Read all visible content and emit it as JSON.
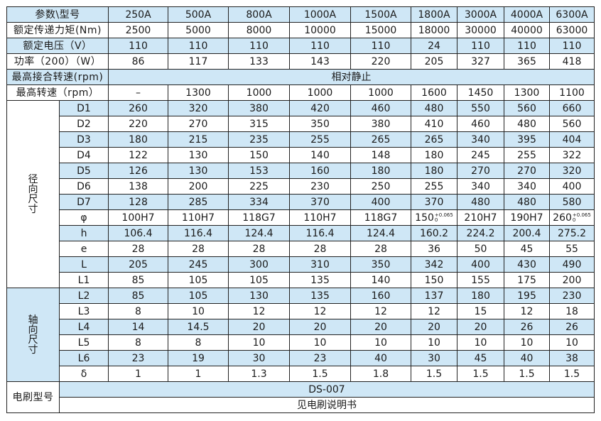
{
  "colors": {
    "stripe": "#cfe7f6",
    "border": "#222222"
  },
  "header": {
    "label": "参数\\型号",
    "models": [
      "250A",
      "500A",
      "800A",
      "1000A",
      "1500A",
      "1800A",
      "3000A",
      "4000A",
      "6300A"
    ]
  },
  "rows": [
    {
      "label": "额定传递力矩(Nm)",
      "values": [
        "2500",
        "5000",
        "8000",
        "10000",
        "15000",
        "18000",
        "30000",
        "40000",
        "63000"
      ]
    },
    {
      "label": "额定电压（V）",
      "values": [
        "110",
        "110",
        "110",
        "110",
        "110",
        "24",
        "110",
        "110",
        "110"
      ]
    },
    {
      "label": "功率（200）（W）",
      "values": [
        "86",
        "117",
        "133",
        "143",
        "220",
        "205",
        "327",
        "365",
        "418"
      ]
    }
  ],
  "engage": {
    "label": "最高接合转速(rpm)",
    "value": "相对静止"
  },
  "max_speed": {
    "label": "最高转速（rpm）",
    "values": [
      "–",
      "1300",
      "1000",
      "1000",
      "1000",
      "1600",
      "1450",
      "1300",
      "1100"
    ]
  },
  "radial": {
    "group": [
      "径",
      "向",
      "尺",
      "寸"
    ],
    "rows": [
      {
        "label": "D1",
        "values": [
          "260",
          "320",
          "380",
          "420",
          "460",
          "480",
          "550",
          "560",
          "660"
        ]
      },
      {
        "label": "D2",
        "values": [
          "220",
          "270",
          "315",
          "350",
          "380",
          "410",
          "460",
          "480",
          "560"
        ]
      },
      {
        "label": "D3",
        "values": [
          "180",
          "215",
          "235",
          "255",
          "265",
          "265",
          "340",
          "395",
          "404"
        ]
      },
      {
        "label": "D4",
        "values": [
          "122",
          "130",
          "150",
          "140",
          "148",
          "180",
          "245",
          "255",
          "322"
        ]
      },
      {
        "label": "D5",
        "values": [
          "126",
          "130",
          "153",
          "160",
          "180",
          "180",
          "270",
          "270",
          "320"
        ]
      },
      {
        "label": "D6",
        "values": [
          "138",
          "200",
          "225",
          "230",
          "250",
          "255",
          "340",
          "340",
          "400"
        ]
      },
      {
        "label": "D7",
        "values": [
          "128",
          "285",
          "334",
          "370",
          "400",
          "370",
          "480",
          "480",
          "580"
        ]
      },
      {
        "label": "φ",
        "values": [
          "100H7",
          "110H7",
          "118G7",
          "110H7",
          "118G7",
          {
            "base": "150",
            "upper": "+0.065",
            "lower": "0"
          },
          "210H7",
          "190H7",
          {
            "base": "260",
            "upper": "+0.065",
            "lower": "0"
          }
        ]
      },
      {
        "label": "h",
        "values": [
          "106.4",
          "116.4",
          "124.4",
          "116.4",
          "124.4",
          "160.2",
          "224.2",
          "200.4",
          "275.2"
        ]
      },
      {
        "label": "e",
        "values": [
          "28",
          "28",
          "28",
          "28",
          "28",
          "36",
          "50",
          "45",
          "55"
        ]
      },
      {
        "label": "L",
        "values": [
          "205",
          "245",
          "300",
          "310",
          "350",
          "342",
          "400",
          "430",
          "490"
        ]
      },
      {
        "label": "L1",
        "values": [
          "85",
          "105",
          "105",
          "135",
          "140",
          "150",
          "155",
          "175",
          "200"
        ]
      }
    ]
  },
  "axial": {
    "group": [
      "轴",
      "向",
      "尺",
      "寸"
    ],
    "rows": [
      {
        "label": "L2",
        "values": [
          "85",
          "105",
          "130",
          "135",
          "160",
          "137",
          "180",
          "195",
          "230"
        ]
      },
      {
        "label": "L3",
        "values": [
          "8",
          "10",
          "12",
          "12",
          "12",
          "12",
          "15",
          "12",
          "18"
        ]
      },
      {
        "label": "L4",
        "values": [
          "14",
          "14.5",
          "20",
          "20",
          "20",
          "20",
          "20",
          "26",
          "26"
        ]
      },
      {
        "label": "L5",
        "values": [
          "8",
          "8",
          "10",
          "10",
          "10",
          "10",
          "10",
          "10",
          "10"
        ]
      },
      {
        "label": "L6",
        "values": [
          "23",
          "19",
          "30",
          "23",
          "40",
          "30",
          "45",
          "40",
          "38"
        ]
      },
      {
        "label": "δ",
        "values": [
          "1",
          "1",
          "1.3",
          "1.5",
          "1.8",
          "1.5",
          "1.5",
          "1.5",
          "1.5"
        ]
      }
    ]
  },
  "brush": {
    "label": "电刷型号",
    "model": "DS-007",
    "note": "见电刷说明书"
  }
}
